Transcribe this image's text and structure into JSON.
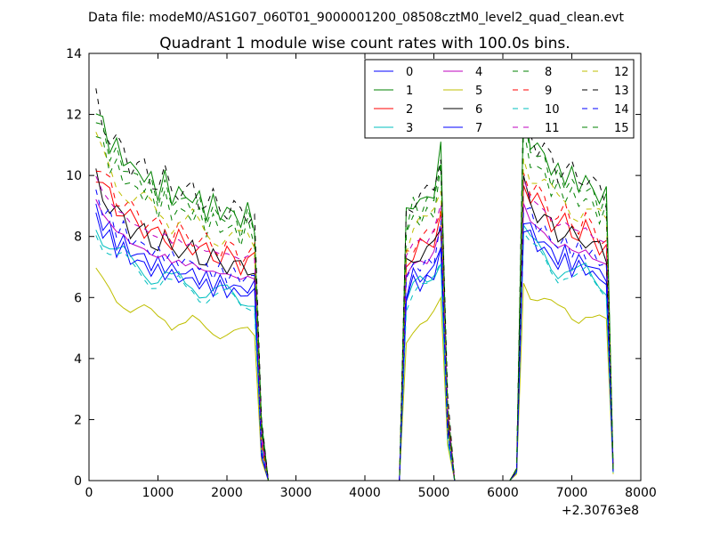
{
  "chart_data": {
    "type": "line",
    "suptitle": "Data file: modeM0/AS1G07_060T01_9000001200_08508cztM0_level2_quad_clean.evt",
    "title": "Quadrant 1 module wise count rates with 100.0s bins.",
    "xlabel": "",
    "ylabel": "",
    "x_offset_label": "+2.30763e8",
    "xlim": [
      0,
      8000
    ],
    "ylim": [
      0,
      14
    ],
    "xticks": [
      0,
      1000,
      2000,
      3000,
      4000,
      5000,
      6000,
      7000,
      8000
    ],
    "yticks": [
      0,
      2,
      4,
      6,
      8,
      10,
      12,
      14
    ],
    "grid": false,
    "legend_position": "top-right",
    "legend_columns": 4,
    "segments_x": [
      [
        100,
        200,
        300,
        400,
        500,
        600,
        700,
        800,
        900,
        1000,
        1100,
        1200,
        1300,
        1400,
        1500,
        1600,
        1700,
        1800,
        1900,
        2000,
        2100,
        2200,
        2300,
        2400,
        2500,
        2600,
        2700,
        2800,
        2900,
        3000,
        3100,
        3200,
        3300,
        3400,
        3500,
        3600,
        3700,
        3800,
        3900,
        4000,
        4100,
        4200,
        4300,
        4400,
        4500,
        4600,
        4700,
        4800,
        4900,
        5000,
        5100,
        5200,
        5300
      ],
      [
        5300,
        5400,
        5500,
        5600,
        5700,
        5800,
        5900,
        6000,
        6100,
        6200,
        6300,
        6400,
        6500,
        6600,
        6700,
        6800,
        6900,
        7000,
        7100,
        7200,
        7300,
        7400,
        7500,
        7600
      ]
    ],
    "series": [
      {
        "name": "0",
        "color": "#0000ff",
        "dash": "solid",
        "offset": 0.0,
        "amp": 0.95
      },
      {
        "name": "1",
        "color": "#008000",
        "dash": "solid",
        "offset": 0.0,
        "amp": 1.3
      },
      {
        "name": "2",
        "color": "#ff0000",
        "dash": "solid",
        "offset": 0.0,
        "amp": 1.08
      },
      {
        "name": "3",
        "color": "#00bfbf",
        "dash": "solid",
        "offset": 0.0,
        "amp": 0.9
      },
      {
        "name": "4",
        "color": "#bf00bf",
        "dash": "solid",
        "offset": 0.0,
        "amp": 0.98
      },
      {
        "name": "5",
        "color": "#bfbf00",
        "dash": "solid",
        "offset": 0.0,
        "amp": 0.72
      },
      {
        "name": "6",
        "color": "#000000",
        "dash": "solid",
        "offset": 0.0,
        "amp": 1.05
      },
      {
        "name": "7",
        "color": "#0000ff",
        "dash": "solid",
        "offset": 0.0,
        "amp": 0.92
      },
      {
        "name": "8",
        "color": "#008000",
        "dash": "dashed",
        "offset": 0.0,
        "amp": 1.22
      },
      {
        "name": "9",
        "color": "#ff0000",
        "dash": "dashed",
        "offset": 0.0,
        "amp": 1.12
      },
      {
        "name": "10",
        "color": "#00bfbf",
        "dash": "dashed",
        "offset": 0.0,
        "amp": 0.88
      },
      {
        "name": "11",
        "color": "#bf00bf",
        "dash": "dashed",
        "offset": 0.0,
        "amp": 1.06
      },
      {
        "name": "12",
        "color": "#bfbf00",
        "dash": "dashed",
        "offset": 0.0,
        "amp": 1.18
      },
      {
        "name": "13",
        "color": "#000000",
        "dash": "dashed",
        "offset": 0.0,
        "amp": 1.32
      },
      {
        "name": "14",
        "color": "#0000ff",
        "dash": "dashed",
        "offset": 0.0,
        "amp": 1.0
      },
      {
        "name": "15",
        "color": "#008000",
        "dash": "dashed",
        "offset": 0.0,
        "amp": 1.27
      }
    ],
    "base_profile": [
      [
        9.4,
        8.9,
        8.6,
        8.3,
        8.2,
        7.9,
        7.8,
        7.7,
        7.5,
        7.4,
        7.5,
        7.2,
        7.3,
        7.1,
        7.2,
        7.0,
        6.9,
        6.9,
        6.8,
        6.8,
        6.7,
        6.6,
        6.7,
        6.6,
        1.2,
        0,
        0,
        0,
        0,
        0,
        0,
        0,
        0,
        0,
        0,
        0,
        0,
        0,
        0,
        0,
        0,
        0,
        0,
        0,
        0,
        6.6,
        7.0,
        7.1,
        7.0,
        7.4,
        8.2,
        1.8,
        0
      ],
      [
        0,
        0,
        0,
        0,
        0,
        0,
        0,
        0,
        0,
        0.3,
        9.2,
        8.6,
        8.4,
        8.2,
        7.9,
        7.7,
        7.8,
        7.6,
        7.5,
        7.6,
        7.3,
        7.2,
        7.1,
        0.3
      ]
    ]
  }
}
